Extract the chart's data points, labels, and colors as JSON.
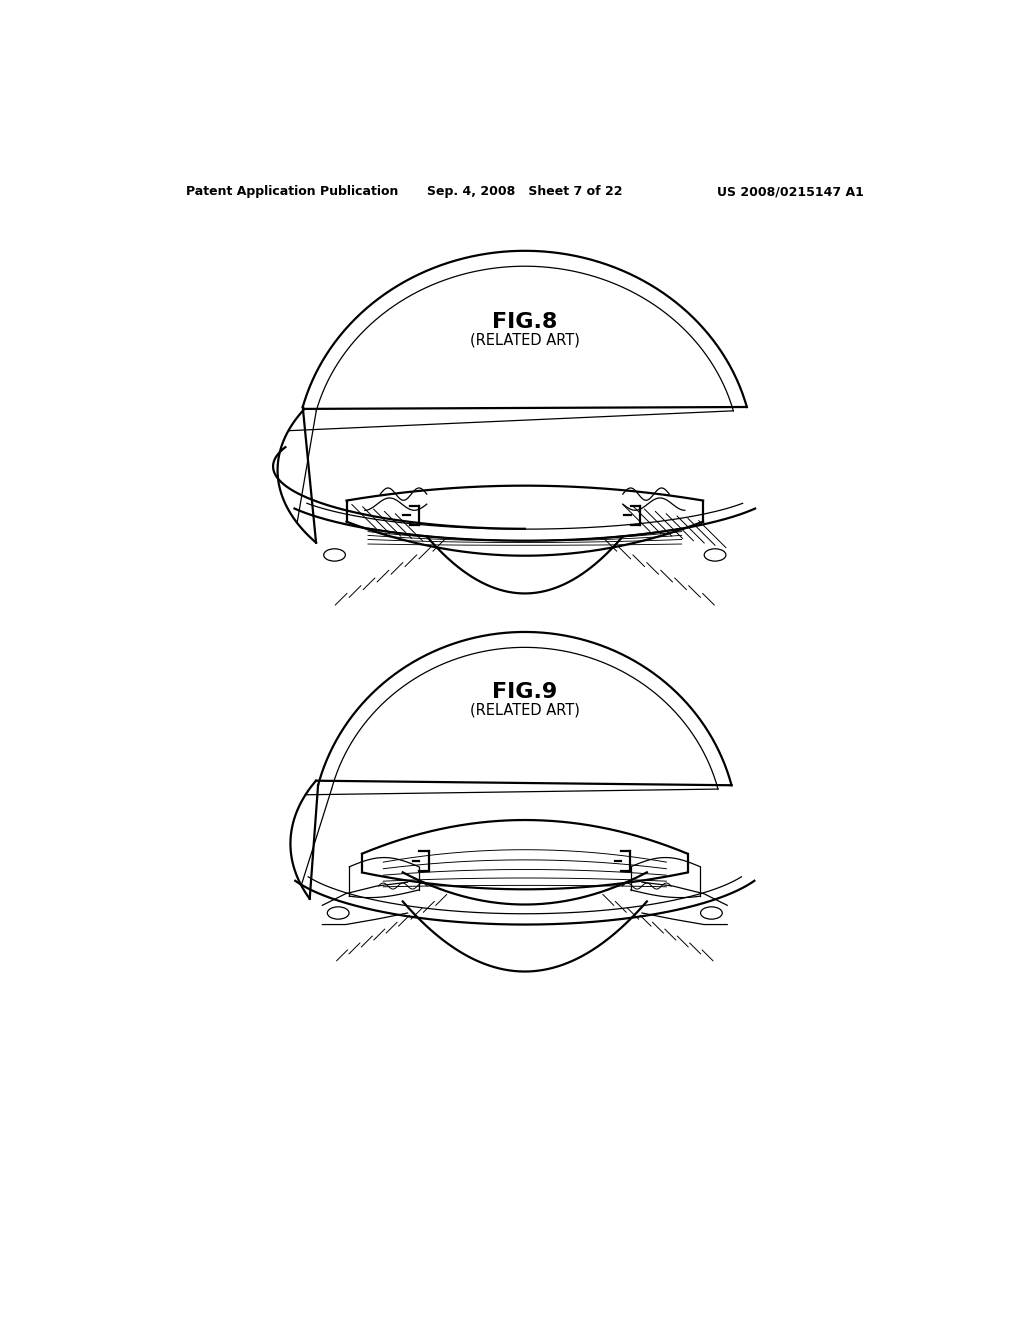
{
  "background_color": "#ffffff",
  "header_left": "Patent Application Publication",
  "header_center": "Sep. 4, 2008   Sheet 7 of 22",
  "header_right": "US 2008/0215147 A1",
  "fig8_title": "FIG.8",
  "fig8_subtitle": "(RELATED ART)",
  "fig9_title": "FIG.9",
  "fig9_subtitle": "(RELATED ART)",
  "line_color": "#000000",
  "lw_main": 1.6,
  "lw_thin": 0.9,
  "lw_hatch": 0.7
}
